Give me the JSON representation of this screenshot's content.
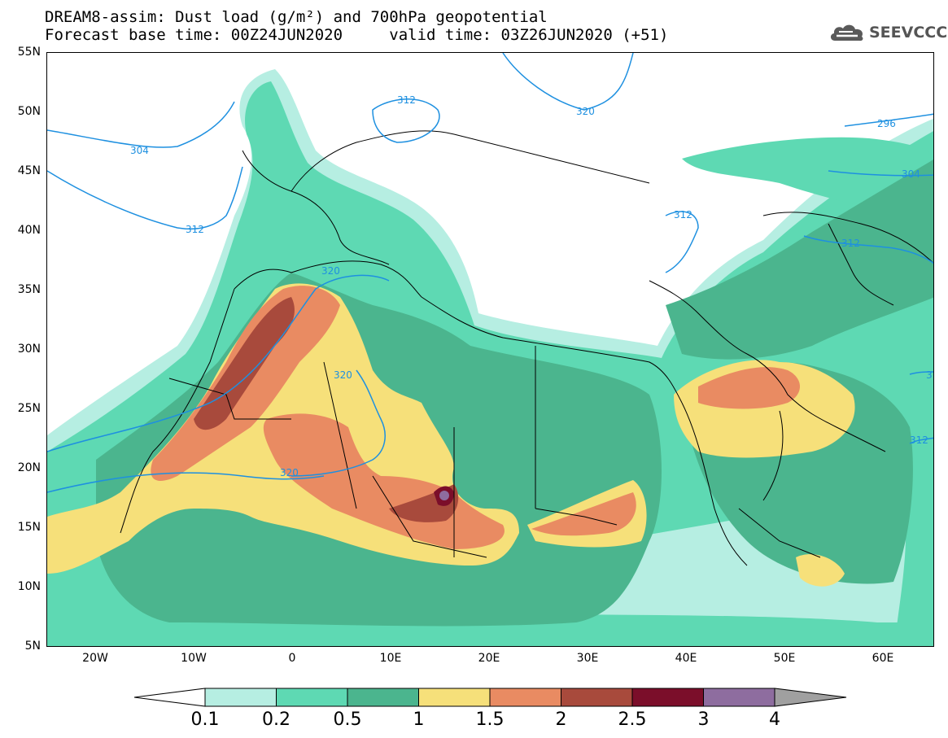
{
  "header": {
    "line1": "DREAM8-assim: Dust load (g/m²) and 700hPa geopotential",
    "line2_base": "Forecast base time: 00Z24JUN2020",
    "line2_valid": "valid time: 03Z26JUN2020 (+51)"
  },
  "logo": {
    "text": "SEEVCCC",
    "icon": "cloud-logo-icon"
  },
  "map": {
    "lat_ticks": [
      "55N",
      "50N",
      "45N",
      "40N",
      "35N",
      "30N",
      "25N",
      "20N",
      "15N",
      "10N",
      "5N"
    ],
    "lon_ticks": [
      "20W",
      "10W",
      "0",
      "10E",
      "20E",
      "30E",
      "40E",
      "50E",
      "60E"
    ],
    "contour_labels": [
      "312",
      "320",
      "304",
      "296",
      "304",
      "312",
      "312",
      "312",
      "320",
      "320",
      "320",
      "312",
      "3"
    ]
  },
  "colorbar": {
    "labels": [
      "0.1",
      "0.2",
      "0.5",
      "1",
      "1.5",
      "2",
      "2.5",
      "3",
      "4"
    ],
    "colors": [
      "#b6eee2",
      "#5ed9b3",
      "#4bb58e",
      "#f6e07a",
      "#e98b62",
      "#a84a3c",
      "#7b0e2a",
      "#8e6d9f",
      "#a0a0a0"
    ],
    "lower_arrow_color": "#ffffff"
  },
  "colors": {
    "c01": "#b6eee2",
    "c02": "#5ed9b3",
    "c05": "#4bb58e",
    "c1": "#f6e07a",
    "c15": "#e98b62",
    "c2": "#a84a3c",
    "c25": "#7b0e2a",
    "c3": "#8e6d9f",
    "contour": "#1e90e0"
  }
}
